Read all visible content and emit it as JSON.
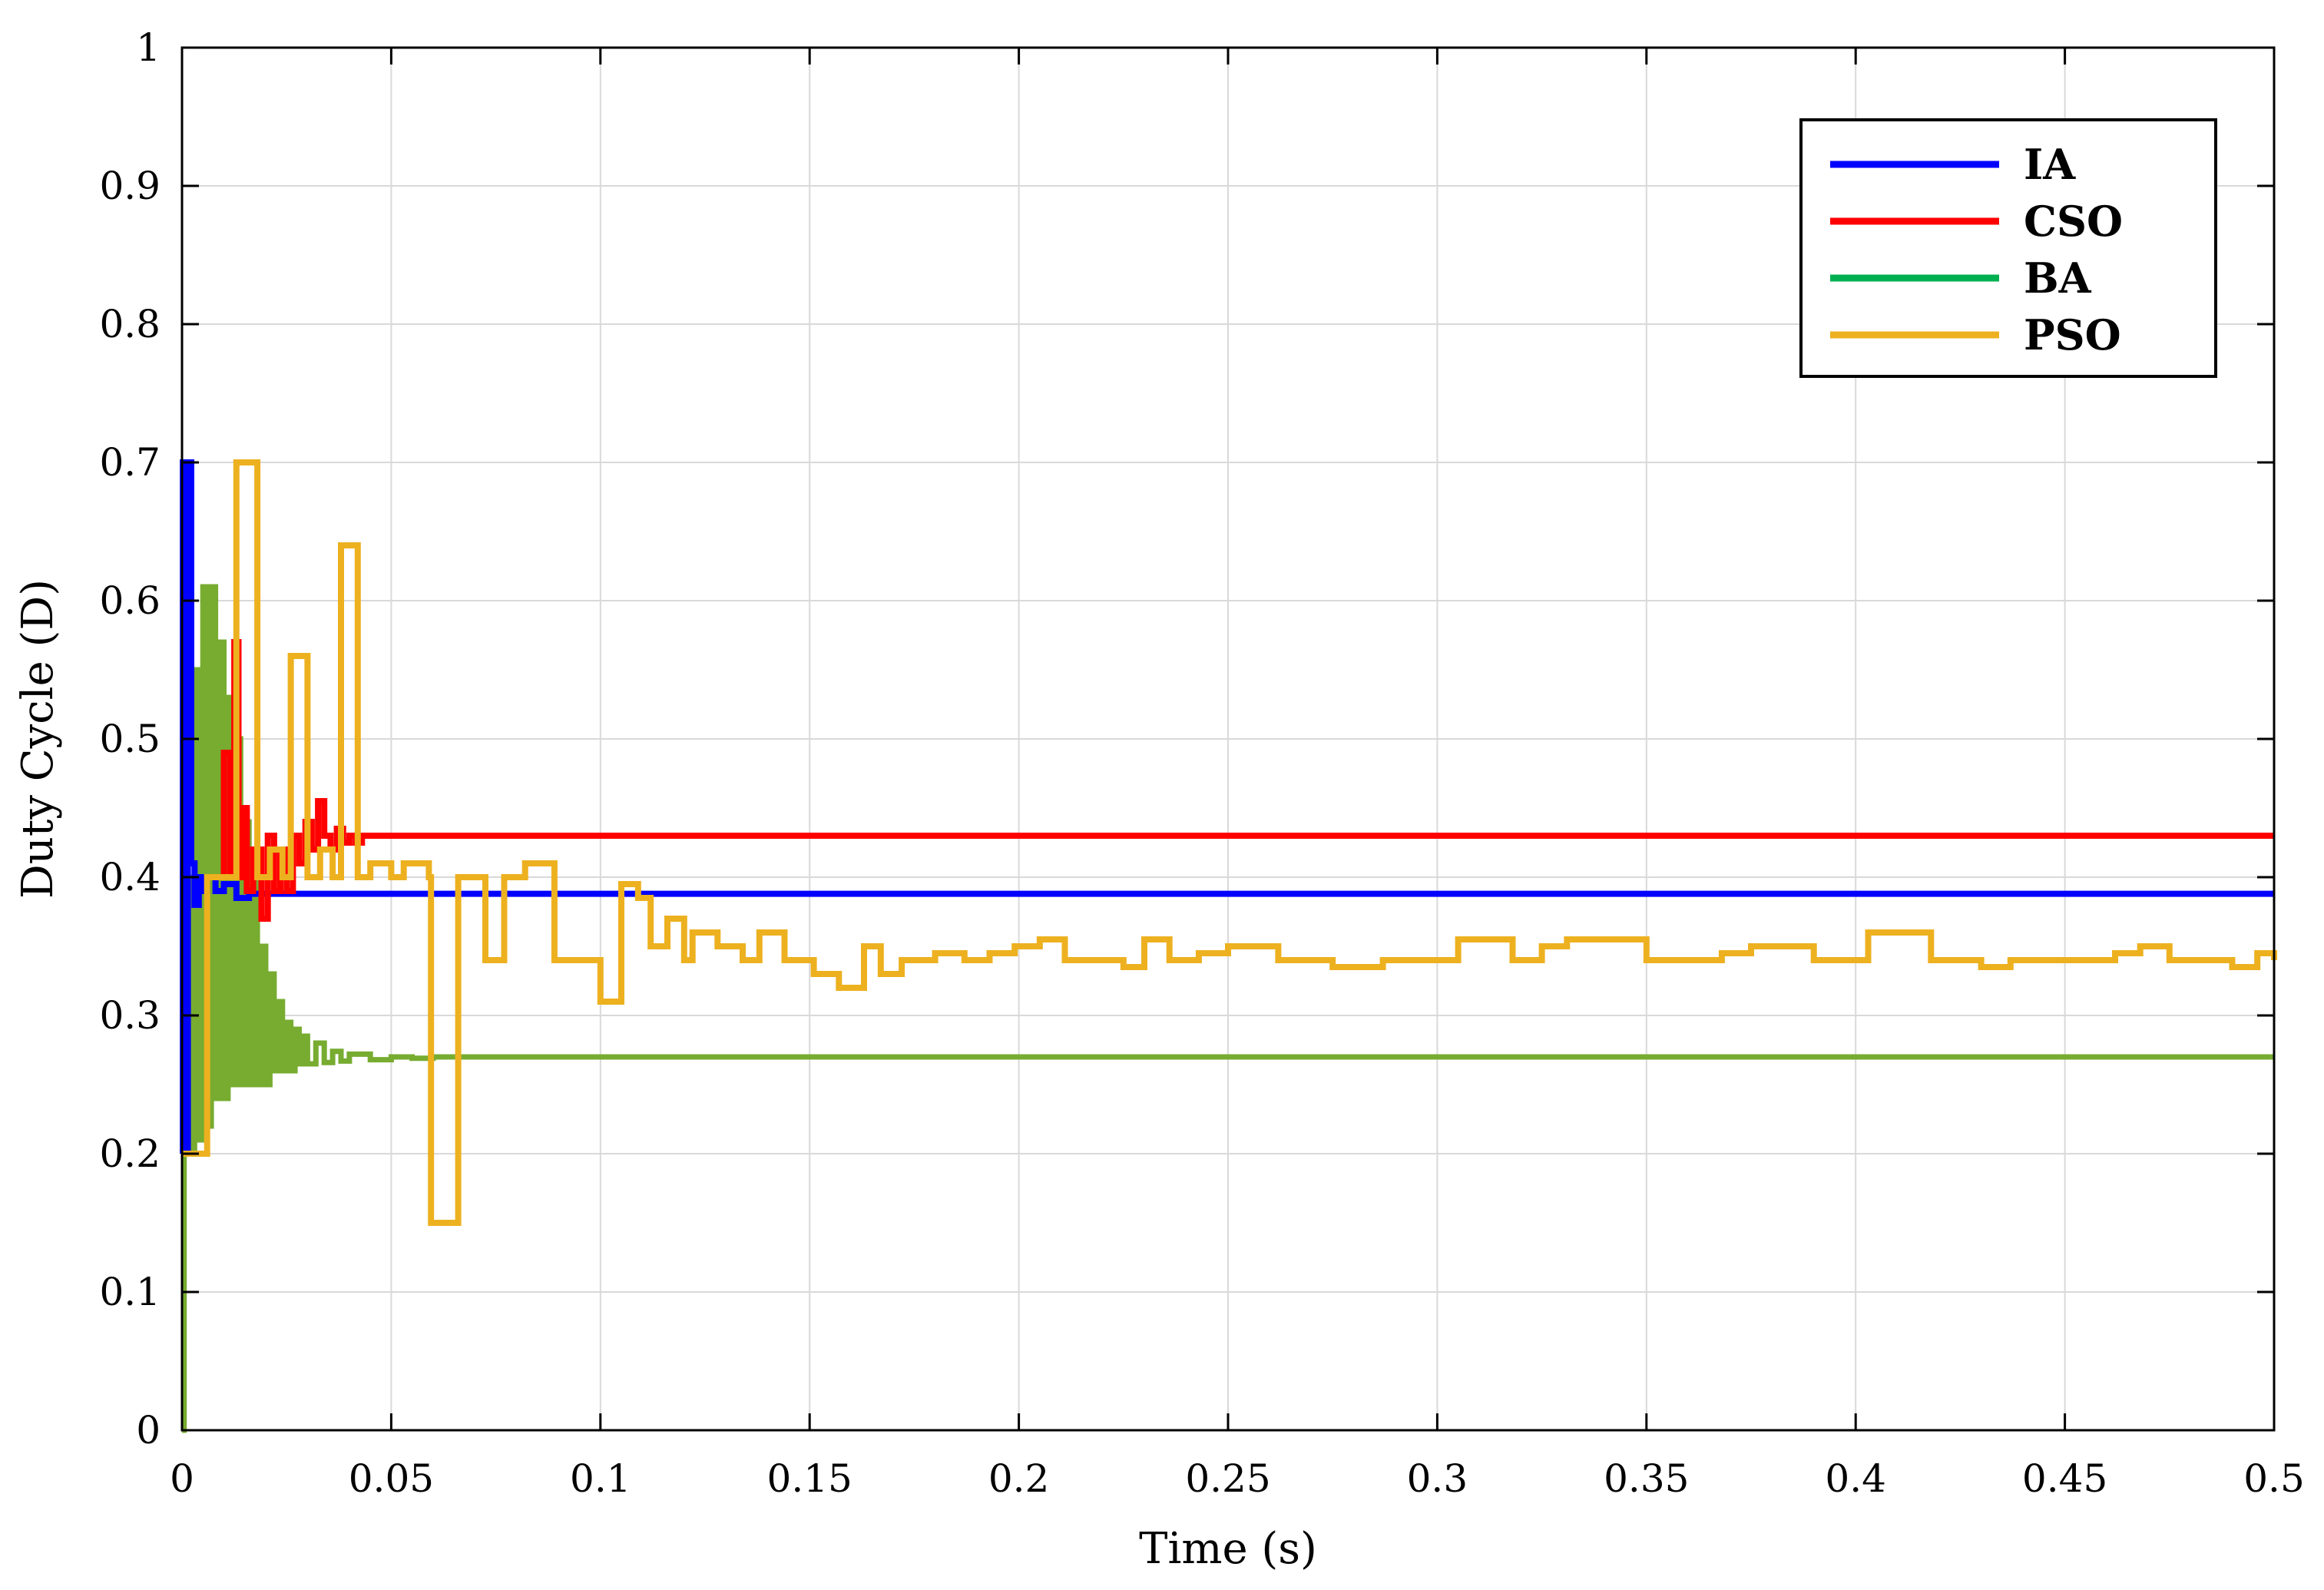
{
  "chart_data": {
    "type": "line",
    "title": "",
    "xlabel": "Time (s)",
    "ylabel": "Duty Cycle (D)",
    "xlim": [
      0,
      0.5
    ],
    "ylim": [
      0,
      1
    ],
    "x_ticks": [
      0,
      0.05,
      0.1,
      0.15,
      0.2,
      0.25,
      0.3,
      0.35,
      0.4,
      0.45,
      0.5
    ],
    "x_tick_labels": [
      "0",
      "0.05",
      "0.1",
      "0.15",
      "0.2",
      "0.25",
      "0.3",
      "0.35",
      "0.4",
      "0.45",
      "0.5"
    ],
    "y_ticks": [
      0,
      0.1,
      0.2,
      0.3,
      0.4,
      0.5,
      0.6,
      0.7,
      0.8,
      0.9,
      1
    ],
    "y_tick_labels": [
      "0",
      "0.1",
      "0.2",
      "0.3",
      "0.4",
      "0.5",
      "0.6",
      "0.7",
      "0.8",
      "0.9",
      "1"
    ],
    "grid": true,
    "legend_position": "top-right",
    "series": [
      {
        "name": "IA",
        "color": "#0000ff",
        "step": true,
        "x": [
          0,
          0.0002,
          0.0008,
          0.0014,
          0.0022,
          0.003,
          0.004,
          0.005,
          0.006,
          0.008,
          0.01,
          0.013,
          0.016,
          0.5
        ],
        "y": [
          0.2,
          0.7,
          0.2,
          0.7,
          0.41,
          0.38,
          0.4,
          0.39,
          0.4,
          0.39,
          0.395,
          0.385,
          0.388,
          0.388
        ]
      },
      {
        "name": "CSO",
        "color": "#ff0000",
        "step": true,
        "x": [
          0.009,
          0.01,
          0.0115,
          0.0125,
          0.0135,
          0.0145,
          0.0155,
          0.017,
          0.019,
          0.0205,
          0.022,
          0.0235,
          0.025,
          0.0265,
          0.028,
          0.0295,
          0.031,
          0.0325,
          0.034,
          0.0355,
          0.037,
          0.0385,
          0.04,
          0.0415,
          0.043,
          0.5
        ],
        "y": [
          0.4,
          0.49,
          0.4,
          0.57,
          0.4,
          0.45,
          0.39,
          0.42,
          0.37,
          0.43,
          0.39,
          0.42,
          0.39,
          0.43,
          0.41,
          0.44,
          0.42,
          0.455,
          0.43,
          0.42,
          0.435,
          0.425,
          0.43,
          0.425,
          0.43,
          0.43
        ]
      },
      {
        "name": "BA",
        "color": "#77ac30",
        "step": true,
        "x": [
          0,
          0.0005,
          0.001,
          0.002,
          0.003,
          0.004,
          0.005,
          0.006,
          0.007,
          0.008,
          0.009,
          0.01,
          0.011,
          0.012,
          0.013,
          0.014,
          0.015,
          0.016,
          0.017,
          0.018,
          0.019,
          0.02,
          0.021,
          0.022,
          0.023,
          0.024,
          0.025,
          0.026,
          0.027,
          0.028,
          0.029,
          0.03,
          0.032,
          0.034,
          0.036,
          0.038,
          0.04,
          0.045,
          0.05,
          0.055,
          0.06,
          0.5
        ],
        "y": [
          0,
          0.2,
          0.4,
          0.2,
          0.55,
          0.21,
          0.61,
          0.22,
          0.61,
          0.24,
          0.57,
          0.24,
          0.53,
          0.25,
          0.5,
          0.25,
          0.44,
          0.25,
          0.4,
          0.25,
          0.35,
          0.25,
          0.33,
          0.26,
          0.31,
          0.26,
          0.295,
          0.26,
          0.29,
          0.265,
          0.285,
          0.265,
          0.28,
          0.266,
          0.274,
          0.267,
          0.272,
          0.268,
          0.27,
          0.269,
          0.27,
          0.27
        ]
      },
      {
        "name": "PSO",
        "color": "#edb120",
        "step": true,
        "x": [
          0,
          0.002,
          0.006,
          0.011,
          0.013,
          0.018,
          0.021,
          0.024,
          0.026,
          0.03,
          0.033,
          0.036,
          0.038,
          0.042,
          0.045,
          0.05,
          0.053,
          0.059,
          0.0595,
          0.066,
          0.0665,
          0.072,
          0.0725,
          0.077,
          0.0775,
          0.082,
          0.086,
          0.089,
          0.095,
          0.1,
          0.105,
          0.109,
          0.112,
          0.116,
          0.12,
          0.122,
          0.128,
          0.134,
          0.138,
          0.144,
          0.147,
          0.151,
          0.157,
          0.163,
          0.167,
          0.172,
          0.177,
          0.18,
          0.187,
          0.193,
          0.199,
          0.205,
          0.211,
          0.218,
          0.225,
          0.23,
          0.236,
          0.243,
          0.25,
          0.262,
          0.275,
          0.287,
          0.3,
          0.305,
          0.318,
          0.325,
          0.331,
          0.35,
          0.362,
          0.368,
          0.375,
          0.39,
          0.397,
          0.403,
          0.418,
          0.43,
          0.437,
          0.45,
          0.462,
          0.468,
          0.475,
          0.49,
          0.496,
          0.5
        ],
        "y": [
          0.2,
          0.2,
          0.4,
          0.4,
          0.7,
          0.4,
          0.42,
          0.4,
          0.56,
          0.4,
          0.42,
          0.4,
          0.64,
          0.4,
          0.41,
          0.4,
          0.41,
          0.4,
          0.15,
          0.4,
          0.4,
          0.4,
          0.34,
          0.4,
          0.4,
          0.41,
          0.41,
          0.34,
          0.34,
          0.31,
          0.395,
          0.385,
          0.35,
          0.37,
          0.34,
          0.36,
          0.35,
          0.34,
          0.36,
          0.34,
          0.34,
          0.33,
          0.32,
          0.35,
          0.33,
          0.34,
          0.34,
          0.345,
          0.34,
          0.345,
          0.35,
          0.355,
          0.34,
          0.34,
          0.335,
          0.355,
          0.34,
          0.345,
          0.35,
          0.34,
          0.335,
          0.34,
          0.34,
          0.355,
          0.34,
          0.35,
          0.355,
          0.34,
          0.34,
          0.345,
          0.35,
          0.34,
          0.34,
          0.36,
          0.34,
          0.335,
          0.34,
          0.34,
          0.345,
          0.35,
          0.34,
          0.335,
          0.345,
          0.34
        ]
      }
    ]
  }
}
